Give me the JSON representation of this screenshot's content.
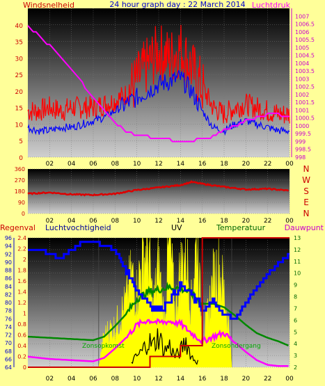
{
  "chart_data": [
    {
      "type": "line",
      "title": "24 hour graph day : 22 March 2014",
      "left_axis_label": "Windsnelheid",
      "right_axis_label": "Luchtdruk",
      "x_ticks": [
        "02",
        "04",
        "06",
        "08",
        "10",
        "12",
        "14",
        "16",
        "18",
        "20",
        "22",
        "00"
      ],
      "left_ticks": [
        0,
        5,
        10,
        15,
        20,
        25,
        30,
        35,
        40
      ],
      "right_ticks": [
        "998",
        "998.5",
        "999",
        "999.5",
        "1000",
        "1000.5",
        "1001",
        "1001.5",
        "1002",
        "1002.5",
        "1003",
        "1003.5",
        "1004",
        "1004.5",
        "1005",
        "1005.5",
        "1006",
        "1006.5",
        "1007"
      ],
      "ylim_left": [
        0,
        45
      ],
      "ylim_right": [
        998,
        1007.5
      ],
      "colors": {
        "gust": "#ff0000",
        "wind": "#0000ff",
        "pressure": "#ff00ff"
      },
      "x": [
        0,
        1,
        2,
        3,
        4,
        5,
        6,
        7,
        8,
        9,
        10,
        11,
        12,
        13,
        14,
        15,
        16,
        17,
        18,
        19,
        20,
        21,
        22,
        23,
        24
      ],
      "series": [
        {
          "key": "wind_gust",
          "values": [
            14,
            14,
            15,
            14,
            15,
            15,
            15,
            16,
            17,
            19,
            23,
            28,
            32,
            30,
            33,
            27,
            21,
            15,
            13,
            15,
            16,
            15,
            14,
            13,
            13
          ]
        },
        {
          "key": "wind_speed",
          "values": [
            9,
            8,
            8,
            9,
            9,
            10,
            11,
            12,
            14,
            16,
            18,
            20,
            22,
            23,
            24,
            20,
            14,
            9,
            8,
            10,
            11,
            10,
            9,
            8,
            8
          ]
        },
        {
          "key": "pressure",
          "values": [
            1006.3,
            1005.8,
            1005.1,
            1004.4,
            1003.6,
            1002.7,
            1001.8,
            1001.0,
            1000.2,
            999.6,
            999.4,
            999.3,
            999.2,
            999.1,
            999.0,
            999.0,
            999.2,
            999.3,
            999.7,
            1000.0,
            1000.3,
            1000.5,
            1000.7,
            1000.7,
            1000.5
          ]
        }
      ]
    },
    {
      "type": "line",
      "right_label_letters": [
        "N",
        "W",
        "S",
        "E",
        "N"
      ],
      "left_ticks": [
        0,
        90,
        180,
        270,
        360
      ],
      "ylim": [
        0,
        360
      ],
      "x_ticks": [
        "02",
        "04",
        "06",
        "08",
        "10",
        "12",
        "14",
        "16",
        "18",
        "20",
        "22",
        "00"
      ],
      "color": "#dd0000",
      "x": [
        0,
        2,
        4,
        6,
        8,
        10,
        12,
        14,
        15,
        16,
        18,
        20,
        22,
        24
      ],
      "values": [
        160,
        170,
        155,
        150,
        160,
        190,
        210,
        230,
        255,
        240,
        215,
        195,
        200,
        185
      ]
    },
    {
      "type": "area",
      "labels": {
        "rain": "Regenval",
        "humidity": "Luchtvochtigheid",
        "uv": "UV",
        "temp": "Temperatuur",
        "dew": "Dauwpunt"
      },
      "left_ticks_rain": [
        "0",
        "0.2",
        "0.4",
        "0.6",
        "0.8",
        "1",
        "1.2",
        "1.4",
        "1.6",
        "1.8",
        "2",
        "2.2",
        "2.4"
      ],
      "left_ticks_hum": [
        64,
        66,
        68,
        70,
        72,
        74,
        76,
        78,
        80,
        82,
        84,
        86,
        88,
        90,
        92,
        94,
        96
      ],
      "right_ticks": [
        2,
        3,
        4,
        5,
        6,
        7,
        8,
        9,
        10,
        11,
        12,
        13
      ],
      "x_ticks": [
        "02",
        "04",
        "06",
        "08",
        "10",
        "12",
        "14",
        "16",
        "18",
        "20",
        "22",
        "00"
      ],
      "annotations": [
        "Zonsopkomst",
        "Zonsondergang"
      ],
      "sunrise_hour": 6.5,
      "sunset_hour": 18.7,
      "colors": {
        "solar": "#ffff00",
        "humidity": "#0000ff",
        "temp": "#008800",
        "dew": "#ff00ff",
        "uv": "#000000",
        "rain": "#cc0000"
      },
      "humidity": {
        "x": [
          0,
          1,
          2,
          3,
          4,
          5,
          6,
          7,
          8,
          9,
          10,
          11,
          12,
          13,
          14,
          15,
          16,
          17,
          18,
          19,
          20,
          21,
          22,
          23,
          24
        ],
        "values": [
          93,
          93,
          92,
          91,
          93,
          95,
          95,
          94,
          93,
          88,
          83,
          80,
          78,
          81,
          84,
          82,
          78,
          80,
          77,
          76,
          80,
          84,
          87,
          90,
          92
        ]
      },
      "temperature": {
        "x": [
          0,
          2,
          4,
          6,
          7,
          8,
          9,
          10,
          11,
          12,
          13,
          14,
          15,
          16,
          17,
          18,
          19,
          20,
          21,
          22,
          23,
          24
        ],
        "values": [
          4.6,
          4.5,
          4.4,
          4.3,
          4.6,
          5.5,
          6.5,
          7.8,
          8.4,
          8.6,
          8.8,
          8.7,
          8.3,
          7.4,
          7.4,
          7.1,
          6.4,
          5.6,
          4.9,
          4.5,
          4.2,
          3.8
        ]
      },
      "dewpoint": {
        "x": [
          0,
          2,
          4,
          6,
          7,
          8,
          9,
          10,
          11,
          12,
          13,
          14,
          15,
          16,
          17,
          18,
          19,
          20,
          21,
          22,
          23,
          24
        ],
        "values": [
          2.9,
          2.7,
          2.6,
          2.5,
          2.8,
          3.6,
          4.5,
          5.6,
          6.0,
          5.8,
          5.9,
          5.7,
          4.9,
          4.2,
          4.6,
          4.9,
          4.1,
          3.3,
          2.6,
          2.2,
          2.1,
          2.1
        ]
      },
      "uv": {
        "x": [
          9.5,
          10,
          10.5,
          11,
          11.5,
          12,
          12.5,
          13,
          13.5,
          14,
          14.5,
          15,
          15.5
        ],
        "values": [
          0.1,
          0.2,
          0.3,
          0.5,
          0.4,
          0.6,
          0.3,
          0.4,
          0.2,
          0.3,
          0.5,
          0.2,
          0.1
        ]
      },
      "rain_total": {
        "x": [
          0,
          11.2,
          11.2,
          14,
          14,
          16,
          16,
          24
        ],
        "values": [
          0,
          0,
          0.2,
          0.2,
          0.4,
          0.4,
          2.4,
          2.4
        ]
      },
      "solar": {
        "x": [
          6.5,
          7,
          7.5,
          8,
          8.5,
          9,
          9.5,
          10,
          10.5,
          11,
          11.5,
          12,
          12.5,
          13,
          13.5,
          14,
          14.5,
          15,
          15.5,
          16,
          16.5,
          17,
          17.5,
          18,
          18.5,
          18.7
        ],
        "values": [
          0,
          0.55,
          0.65,
          0.7,
          0.9,
          1.1,
          1.6,
          1.3,
          1.9,
          2.1,
          1.0,
          1.8,
          0.8,
          2.3,
          0.9,
          1.7,
          2.0,
          1.1,
          2.3,
          0.5,
          0.9,
          1.5,
          1.8,
          1.3,
          0.6,
          0
        ]
      }
    }
  ]
}
